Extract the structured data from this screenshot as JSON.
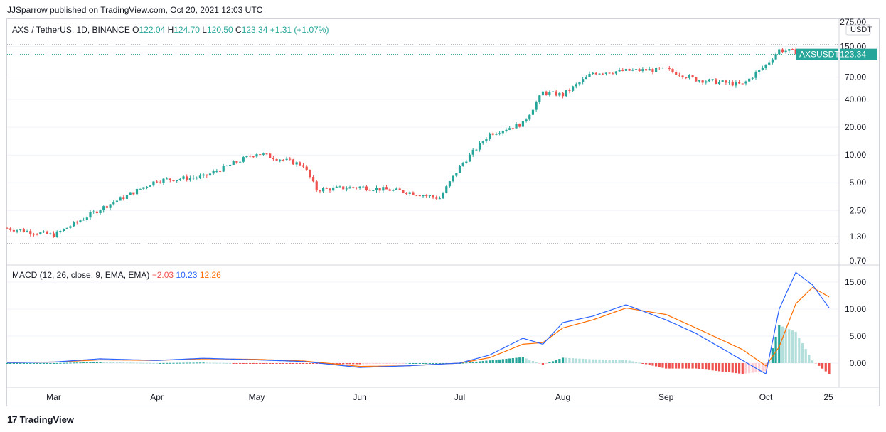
{
  "header": {
    "publish_line": "JJSparrow published on TradingView.com, Oct 20, 2021 12:03 UTC"
  },
  "legend": {
    "symbol": "AXS / TetherUS, 1D, BINANCE",
    "o_label": "O",
    "o": "122.04",
    "h_label": "H",
    "h": "124.70",
    "l_label": "L",
    "l": "120.50",
    "c_label": "C",
    "c": "123.34",
    "change": "+1.31 (+1.07%)"
  },
  "price_axis": {
    "currency": "USDT",
    "ticks": [
      "275.00",
      "150.00",
      "70.00",
      "40.00",
      "20.00",
      "10.00",
      "5.00",
      "2.50",
      "1.30",
      "0.70"
    ]
  },
  "last_price": {
    "ticker": "AXSUSDT",
    "value": "123.34"
  },
  "macd_legend": {
    "label": "MACD (12, 26, close, 9, EMA, EMA)",
    "hist": "−2.03",
    "macd": "10.23",
    "signal": "12.26"
  },
  "macd_axis": {
    "ticks": [
      "15.00",
      "10.00",
      "5.00",
      "0.00"
    ]
  },
  "time_axis": {
    "ticks": [
      "Mar",
      "Apr",
      "May",
      "Jun",
      "Jul",
      "Aug",
      "Sep",
      "Oct",
      "25"
    ]
  },
  "footer": {
    "brand": "TradingView",
    "logo": "17"
  },
  "colors": {
    "up": "#26a69a",
    "down": "#ef5350",
    "macd": "#2962ff",
    "signal": "#ff6d00",
    "grid": "#f0f3fa"
  },
  "chart_data": [
    {
      "type": "line",
      "title": "AXS / TetherUS, 1D, BINANCE",
      "scale": "log",
      "ylim": [
        0.7,
        275
      ],
      "x": [
        "2021-02-15",
        "2021-03-01",
        "2021-03-15",
        "2021-04-01",
        "2021-04-15",
        "2021-05-01",
        "2021-05-15",
        "2021-05-19",
        "2021-06-01",
        "2021-06-15",
        "2021-06-25",
        "2021-07-01",
        "2021-07-10",
        "2021-07-20",
        "2021-07-26",
        "2021-08-01",
        "2021-08-10",
        "2021-08-20",
        "2021-09-01",
        "2021-09-10",
        "2021-09-24",
        "2021-10-01",
        "2021-10-05",
        "2021-10-13",
        "2021-10-20"
      ],
      "values": [
        1.6,
        1.35,
        2.6,
        5.3,
        5.8,
        10.5,
        7.8,
        4.2,
        4.5,
        4.0,
        3.4,
        7.5,
        17.0,
        22.0,
        48.0,
        45.0,
        78.0,
        82.0,
        85.0,
        66.0,
        58.0,
        95.0,
        138.0,
        128.0,
        123.34
      ],
      "series": [
        {
          "name": "AXSUSDT",
          "last": 123.34
        }
      ]
    },
    {
      "type": "bar",
      "title": "MACD (12, 26, close, 9, EMA, EMA)",
      "ylim": [
        -2.5,
        17
      ],
      "x": [
        "2021-02-15",
        "2021-03-01",
        "2021-03-15",
        "2021-04-01",
        "2021-04-15",
        "2021-05-01",
        "2021-05-15",
        "2021-06-01",
        "2021-06-15",
        "2021-07-01",
        "2021-07-10",
        "2021-07-20",
        "2021-07-26",
        "2021-08-01",
        "2021-08-10",
        "2021-08-20",
        "2021-09-01",
        "2021-09-10",
        "2021-09-24",
        "2021-10-01",
        "2021-10-05",
        "2021-10-10",
        "2021-10-15",
        "2021-10-20"
      ],
      "series": [
        {
          "name": "MACD",
          "values": [
            0.1,
            0.2,
            0.8,
            0.5,
            0.9,
            0.6,
            0.3,
            -0.8,
            -0.5,
            0.0,
            1.5,
            4.6,
            3.5,
            7.5,
            8.7,
            10.8,
            8.0,
            5.5,
            0.5,
            -2.0,
            10.0,
            16.8,
            14.5,
            10.23
          ]
        },
        {
          "name": "Signal",
          "values": [
            0.1,
            0.2,
            0.6,
            0.5,
            0.8,
            0.7,
            0.4,
            -0.6,
            -0.5,
            0.0,
            1.0,
            3.5,
            3.8,
            6.5,
            8.0,
            10.2,
            9.0,
            6.5,
            2.5,
            -0.5,
            3.0,
            11.0,
            14.0,
            12.26
          ]
        },
        {
          "name": "Histogram",
          "values": [
            0.0,
            0.0,
            0.2,
            0.0,
            0.1,
            -0.1,
            -0.1,
            -0.2,
            0.0,
            0.0,
            0.5,
            1.1,
            -0.3,
            1.0,
            0.7,
            0.6,
            -1.0,
            -1.0,
            -2.0,
            -1.5,
            7.0,
            5.8,
            0.5,
            -2.03
          ]
        }
      ]
    }
  ]
}
